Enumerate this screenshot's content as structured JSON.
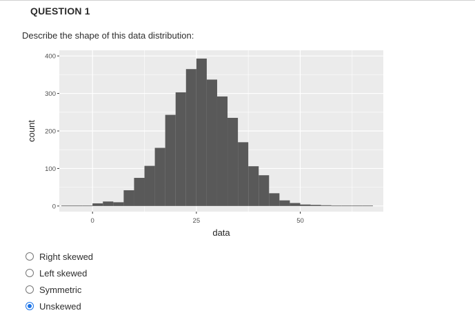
{
  "question": {
    "title": "QUESTION 1",
    "prompt": "Describe the shape of this data distribution:"
  },
  "chart_data": {
    "type": "bar",
    "x_tick_labels": [
      "0",
      "25",
      "50"
    ],
    "x_ticks": [
      0,
      25,
      50
    ],
    "y_tick_labels": [
      "0",
      "100",
      "200",
      "300",
      "400"
    ],
    "y_ticks": [
      0,
      100,
      200,
      300,
      400
    ],
    "xlabel": "data",
    "ylabel": "count",
    "xlim": [
      -8,
      70
    ],
    "ylim": [
      -15,
      415
    ],
    "bin_width": 2.5,
    "bin_starts": [
      -7.5,
      -5,
      -2.5,
      0,
      2.5,
      5,
      7.5,
      10,
      12.5,
      15,
      17.5,
      20,
      22.5,
      25,
      27.5,
      30,
      32.5,
      35,
      37.5,
      40,
      42.5,
      45,
      47.5,
      50,
      52.5,
      55,
      57.5,
      60,
      62.5,
      65
    ],
    "values": [
      1,
      1,
      1,
      7,
      12,
      10,
      42,
      75,
      107,
      155,
      243,
      303,
      365,
      393,
      337,
      292,
      235,
      170,
      106,
      82,
      34,
      15,
      8,
      4,
      3,
      2,
      1,
      1,
      1,
      1
    ],
    "grid": true,
    "colors": {
      "bar": "#595959",
      "panel": "#ebebeb",
      "grid": "#ffffff"
    }
  },
  "options": [
    {
      "label": "Right skewed",
      "checked": false
    },
    {
      "label": "Left skewed",
      "checked": false
    },
    {
      "label": "Symmetric",
      "checked": false
    },
    {
      "label": "Unskewed",
      "checked": true
    }
  ]
}
